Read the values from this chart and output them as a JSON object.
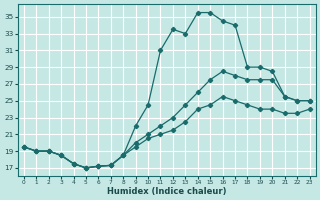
{
  "xlabel": "Humidex (Indice chaleur)",
  "xlim": [
    -0.5,
    23.5
  ],
  "ylim": [
    16.0,
    36.5
  ],
  "yticks": [
    17,
    19,
    21,
    23,
    25,
    27,
    29,
    31,
    33,
    35
  ],
  "xticks": [
    0,
    1,
    2,
    3,
    4,
    5,
    6,
    7,
    8,
    9,
    10,
    11,
    12,
    13,
    14,
    15,
    16,
    17,
    18,
    19,
    20,
    21,
    22,
    23
  ],
  "background_color": "#c5e8e5",
  "grid_color": "#ffffff",
  "line_color": "#1a6b6b",
  "lx1": [
    0,
    1,
    2,
    3,
    4,
    5,
    6,
    7,
    8,
    9,
    10,
    11,
    12,
    13,
    14,
    15,
    16,
    17,
    18,
    19,
    20,
    21,
    22,
    23
  ],
  "ly1": [
    19.5,
    19.0,
    19.0,
    18.5,
    17.5,
    17.0,
    17.2,
    17.3,
    18.5,
    22.0,
    24.5,
    31.0,
    33.5,
    33.0,
    35.5,
    35.5,
    34.5,
    34.0,
    29.0,
    29.0,
    28.5,
    25.5,
    25.0,
    25.0
  ],
  "lx2": [
    0,
    1,
    2,
    3,
    4,
    5,
    6,
    7,
    8,
    9,
    10,
    11,
    12,
    13,
    14,
    15,
    16,
    17,
    18,
    19,
    20,
    21,
    22,
    23
  ],
  "ly2": [
    19.5,
    19.0,
    19.0,
    18.5,
    17.5,
    17.0,
    17.2,
    17.3,
    18.5,
    20.0,
    21.0,
    22.0,
    23.0,
    24.5,
    26.0,
    27.5,
    28.5,
    28.0,
    27.5,
    27.5,
    27.5,
    25.5,
    25.0,
    25.0
  ],
  "lx3": [
    0,
    1,
    2,
    3,
    4,
    5,
    6,
    7,
    8,
    9,
    10,
    11,
    12,
    13,
    14,
    15,
    16,
    17,
    18,
    19,
    20,
    21,
    22,
    23
  ],
  "ly3": [
    19.5,
    19.0,
    19.0,
    18.5,
    17.5,
    17.0,
    17.2,
    17.3,
    18.5,
    19.5,
    20.5,
    21.0,
    21.5,
    22.5,
    24.0,
    24.5,
    25.5,
    25.0,
    24.5,
    24.0,
    24.0,
    23.5,
    23.5,
    24.0
  ]
}
